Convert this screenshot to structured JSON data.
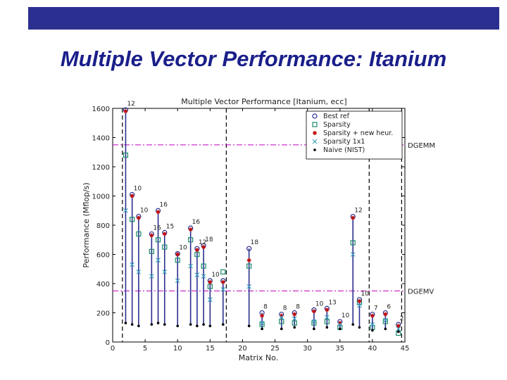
{
  "slide": {
    "title": "Multiple Vector Performance: Itanium",
    "bar_color": "#2b2f8f",
    "title_color": "#1a1f8a"
  },
  "chart_data": {
    "type": "scatter",
    "title": "Multiple Vector Performance [Itanium, ecc]",
    "xlabel": "Matrix No.",
    "ylabel": "Performance (Mflop/s)",
    "xlim": [
      0,
      45
    ],
    "ylim": [
      0,
      1600
    ],
    "xticks": [
      0,
      5,
      10,
      15,
      20,
      25,
      30,
      35,
      40,
      45
    ],
    "yticks": [
      0,
      200,
      400,
      600,
      800,
      1000,
      1200,
      1400,
      1600
    ],
    "vlines_at": [
      1.5,
      17.5,
      39.5,
      44.5
    ],
    "reference_lines": [
      {
        "label": "DGEMM",
        "value": 1350
      },
      {
        "label": "DGEMV",
        "value": 350
      }
    ],
    "legend_position": "top-right",
    "series": [
      {
        "name": "Best ref",
        "x": [
          2,
          3,
          4,
          6,
          7,
          8,
          10,
          12,
          13,
          14,
          15,
          17,
          21,
          23,
          26,
          28,
          31,
          33,
          35,
          37,
          38,
          40,
          42,
          44
        ],
        "values": [
          1590,
          1010,
          860,
          740,
          900,
          750,
          605,
          780,
          640,
          660,
          420,
          420,
          640,
          200,
          190,
          200,
          220,
          230,
          140,
          860,
          290,
          190,
          200,
          120
        ]
      },
      {
        "name": "Sparsity",
        "x": [
          2,
          3,
          4,
          6,
          7,
          8,
          10,
          12,
          13,
          14,
          15,
          17,
          21,
          23,
          26,
          28,
          31,
          33,
          35,
          37,
          38,
          40,
          42,
          44
        ],
        "values": [
          1280,
          840,
          740,
          620,
          700,
          650,
          560,
          700,
          600,
          520,
          380,
          480,
          520,
          120,
          140,
          130,
          130,
          140,
          100,
          680,
          270,
          100,
          140,
          60
        ]
      },
      {
        "name": "Sparsity + new heur.",
        "x": [
          2,
          3,
          4,
          6,
          7,
          8,
          10,
          12,
          13,
          14,
          15,
          17,
          21,
          23,
          26,
          28,
          31,
          33,
          35,
          37,
          38,
          40,
          42,
          44
        ],
        "values": [
          1580,
          1000,
          850,
          730,
          890,
          740,
          600,
          770,
          630,
          650,
          410,
          410,
          560,
          180,
          180,
          190,
          210,
          220,
          130,
          850,
          280,
          180,
          190,
          110
        ]
      },
      {
        "name": "Sparsity 1x1",
        "x": [
          2,
          3,
          4,
          6,
          7,
          8,
          10,
          12,
          13,
          14,
          15,
          17,
          21,
          23,
          26,
          28,
          31,
          33,
          35,
          37,
          38,
          40,
          42,
          44
        ],
        "values": [
          900,
          530,
          480,
          450,
          560,
          480,
          420,
          520,
          460,
          450,
          290,
          360,
          380,
          130,
          170,
          160,
          140,
          170,
          120,
          600,
          250,
          120,
          150,
          90
        ]
      },
      {
        "name": "Naive (NIST)",
        "x": [
          2,
          3,
          4,
          6,
          7,
          8,
          10,
          12,
          13,
          14,
          15,
          17,
          21,
          23,
          26,
          28,
          31,
          33,
          35,
          37,
          38,
          40,
          42,
          44
        ],
        "values": [
          130,
          120,
          110,
          120,
          130,
          120,
          110,
          120,
          110,
          120,
          110,
          120,
          110,
          90,
          90,
          100,
          90,
          100,
          90,
          120,
          100,
          80,
          90,
          70
        ]
      }
    ],
    "annotations": [
      {
        "x": 2,
        "y": 1590,
        "text": "12"
      },
      {
        "x": 3,
        "y": 1010,
        "text": "10"
      },
      {
        "x": 4,
        "y": 860,
        "text": "10"
      },
      {
        "x": 6,
        "y": 740,
        "text": "16"
      },
      {
        "x": 7,
        "y": 900,
        "text": "16"
      },
      {
        "x": 8,
        "y": 750,
        "text": "15"
      },
      {
        "x": 10,
        "y": 605,
        "text": "10"
      },
      {
        "x": 12,
        "y": 780,
        "text": "16"
      },
      {
        "x": 13,
        "y": 640,
        "text": "12"
      },
      {
        "x": 14,
        "y": 660,
        "text": "18"
      },
      {
        "x": 15,
        "y": 420,
        "text": "10"
      },
      {
        "x": 21,
        "y": 640,
        "text": "18"
      },
      {
        "x": 23,
        "y": 200,
        "text": "8"
      },
      {
        "x": 26,
        "y": 190,
        "text": "8"
      },
      {
        "x": 28,
        "y": 200,
        "text": "8"
      },
      {
        "x": 31,
        "y": 220,
        "text": "10"
      },
      {
        "x": 33,
        "y": 230,
        "text": "13"
      },
      {
        "x": 35,
        "y": 140,
        "text": "10"
      },
      {
        "x": 37,
        "y": 860,
        "text": "12"
      },
      {
        "x": 38,
        "y": 290,
        "text": "10"
      },
      {
        "x": 40,
        "y": 190,
        "text": "7"
      },
      {
        "x": 42,
        "y": 200,
        "text": "6"
      },
      {
        "x": 44,
        "y": 120,
        "text": "2"
      }
    ]
  }
}
